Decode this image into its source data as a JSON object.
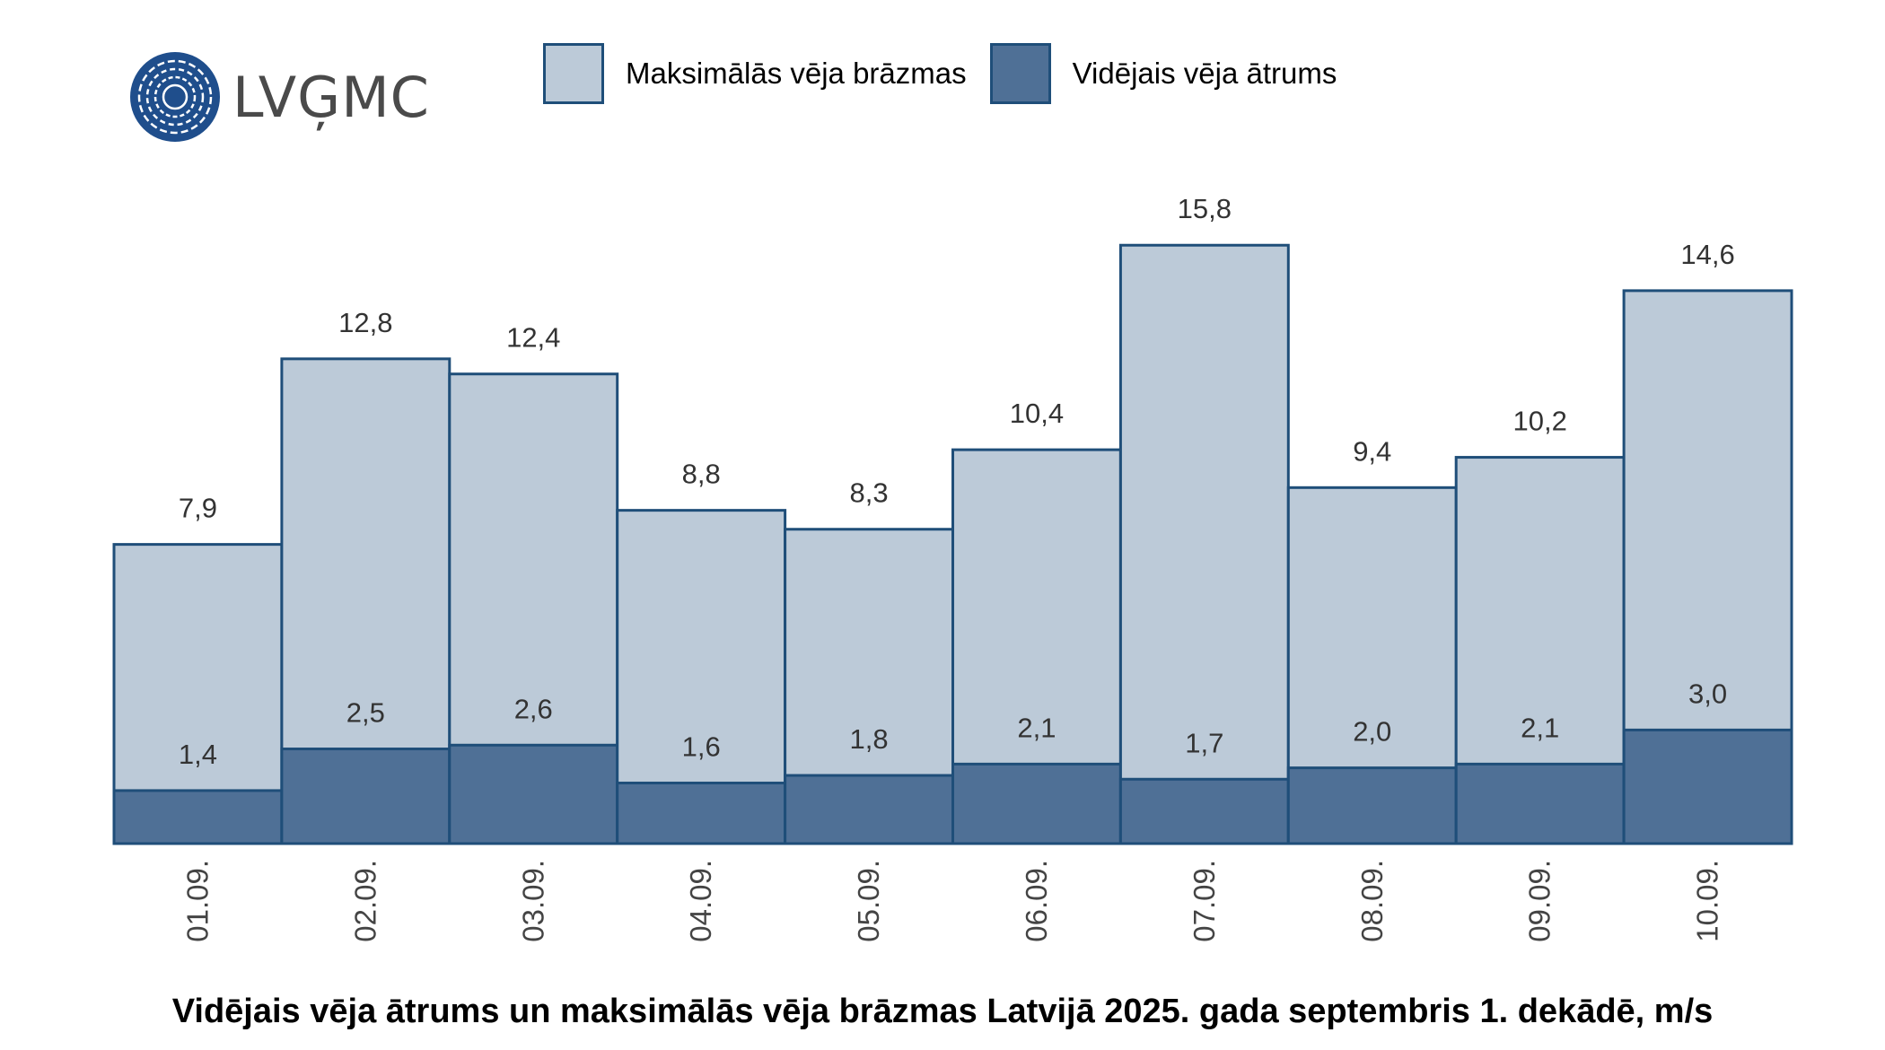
{
  "logo": {
    "text": "LVĢMC"
  },
  "chart_data": {
    "type": "bar",
    "title": "Vidējais vēja ātrums un maksimālās vēja brāzmas Latvijā 2025. gada septembris 1. dekādē, m/s",
    "categories": [
      "01.09.",
      "02.09.",
      "03.09.",
      "04.09.",
      "05.09.",
      "06.09.",
      "07.09.",
      "08.09.",
      "09.09.",
      "10.09."
    ],
    "series": [
      {
        "name": "Maksimālās vēja brāzmas",
        "color": "#bccad8",
        "values": [
          7.9,
          12.8,
          12.4,
          8.8,
          8.3,
          10.4,
          15.8,
          9.4,
          10.2,
          14.6
        ],
        "labels": [
          "7,9",
          "12,8",
          "12,4",
          "8,8",
          "8,3",
          "10,4",
          "15,8",
          "9,4",
          "10,2",
          "14,6"
        ]
      },
      {
        "name": "Vidējais vēja ātrums",
        "color": "#4f7096",
        "values": [
          1.4,
          2.5,
          2.6,
          1.6,
          1.8,
          2.1,
          1.7,
          2.0,
          2.1,
          3.0
        ],
        "labels": [
          "1,4",
          "2,5",
          "2,6",
          "1,6",
          "1,8",
          "2,1",
          "1,7",
          "2,0",
          "2,1",
          "3,0"
        ]
      }
    ],
    "xlabel": "",
    "ylabel": "",
    "ylim": [
      0,
      17
    ],
    "grid": false,
    "legend": "top",
    "border_color": "#1f4e79",
    "overlaid": true
  }
}
